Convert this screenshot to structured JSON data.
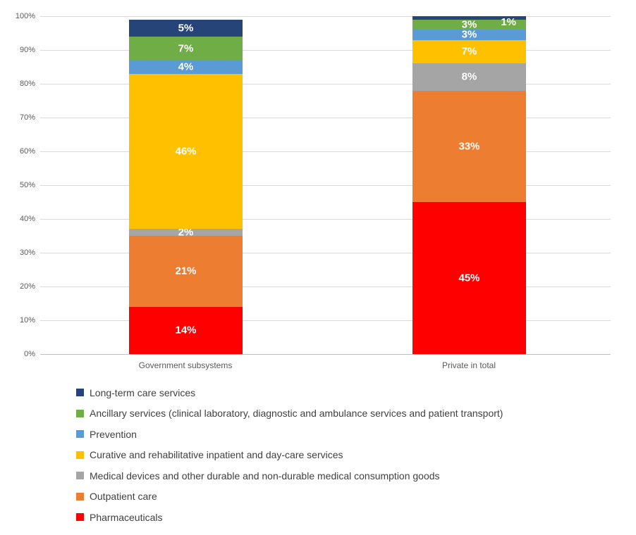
{
  "chart_data": {
    "type": "bar",
    "variant": "stacked-100-column",
    "title": "",
    "xlabel": "",
    "ylabel": "",
    "categories": [
      "Government subsystems",
      "Private in total"
    ],
    "series": [
      {
        "name": "Pharmaceuticals",
        "color": "#ff0000",
        "values": [
          14,
          45
        ]
      },
      {
        "name": "Outpatient care",
        "color": "#ed7d31",
        "values": [
          21,
          33
        ]
      },
      {
        "name": "Medical devices and other durable and non-durable medical consumption goods",
        "color": "#a5a5a5",
        "values": [
          2,
          8
        ]
      },
      {
        "name": "Curative and rehabilitative inpatient and day-care services",
        "color": "#ffc000",
        "values": [
          46,
          7
        ]
      },
      {
        "name": "Prevention",
        "color": "#5b9bd5",
        "values": [
          4,
          3
        ]
      },
      {
        "name": "Ancillary services (clinical laboratory, diagnostic and ambulance services and patient transport)",
        "color": "#70ad47",
        "values": [
          7,
          3
        ]
      },
      {
        "name": "Long-term care services",
        "color": "#264478",
        "values": [
          5,
          1
        ]
      }
    ],
    "data_label_format": "{value}%",
    "y_ticks": [
      "0%",
      "10%",
      "20%",
      "30%",
      "40%",
      "50%",
      "60%",
      "70%",
      "80%",
      "90%",
      "100%"
    ],
    "ylim": [
      0,
      100
    ],
    "grid": true,
    "legend_position": "bottom",
    "legend_order": [
      "Long-term care services",
      "Ancillary services (clinical laboratory, diagnostic and ambulance services and patient transport)",
      "Prevention",
      "Curative and rehabilitative inpatient and day-care services",
      "Medical devices and other durable and non-durable medical consumption goods",
      "Outpatient care",
      "Pharmaceuticals"
    ]
  },
  "colors": {
    "gridline": "#d9d9d9",
    "axis_line": "#bfbfbf",
    "tick_text": "#595959",
    "legend_text": "#404040",
    "data_label_text": "#ffffff",
    "background": "#ffffff"
  }
}
